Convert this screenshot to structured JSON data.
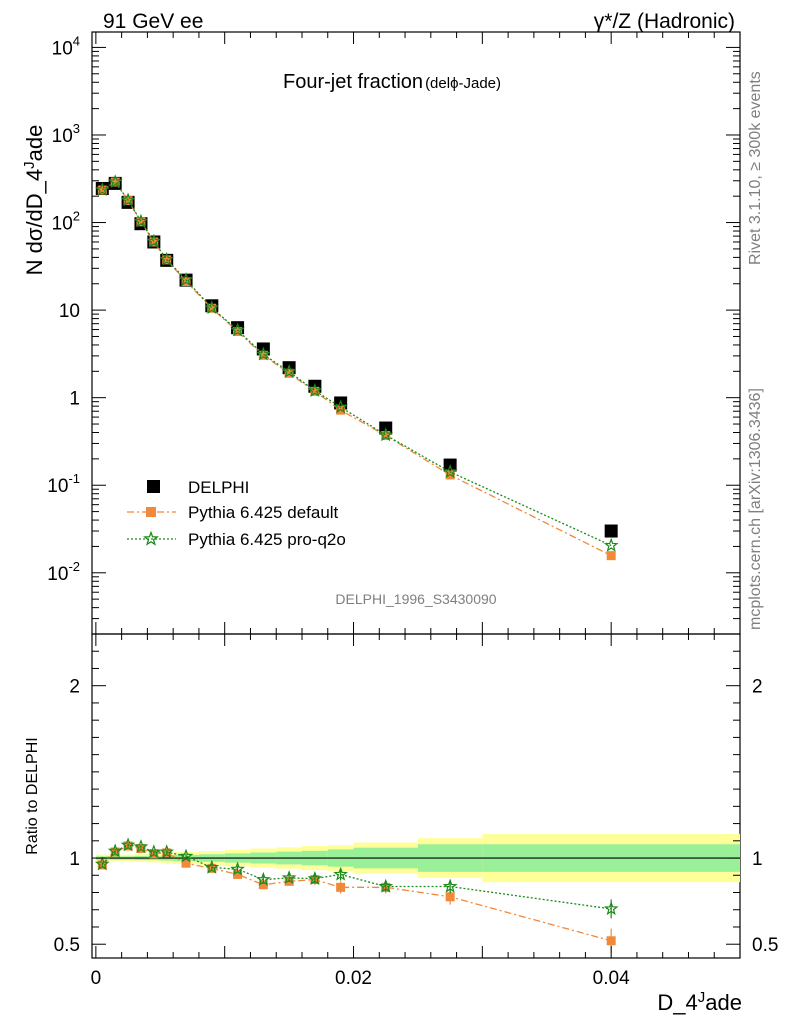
{
  "header": {
    "left": "91 GeV ee",
    "right": "γ*/Z (Hadronic)"
  },
  "side_labels": {
    "rivet": "Rivet 3.1.10, ≥ 300k events",
    "mcplots": "mcplots.cern.ch [arXiv:1306.3436]"
  },
  "chart_data": [
    {
      "type": "scatter",
      "panel": "main",
      "title": "Four-jet fraction",
      "title_suffix": "(delϕ-Jade)",
      "ylabel": "N dσ/dD_4^Jade",
      "yscale": "log",
      "ylim": [
        0.002,
        15000
      ],
      "y_ticks": [
        {
          "value": 0.01,
          "label": "10",
          "exp": "-2"
        },
        {
          "value": 0.1,
          "label": "10",
          "exp": "-1"
        },
        {
          "value": 1,
          "label": "1",
          "exp": ""
        },
        {
          "value": 10,
          "label": "10",
          "exp": ""
        },
        {
          "value": 100,
          "label": "10",
          "exp": "2"
        },
        {
          "value": 1000,
          "label": "10",
          "exp": "3"
        },
        {
          "value": 10000,
          "label": "10",
          "exp": "4"
        }
      ],
      "watermark": "DELPHI_1996_S3430090",
      "x": [
        0.0005,
        0.0015,
        0.0025,
        0.0035,
        0.0045,
        0.0055,
        0.007,
        0.009,
        0.011,
        0.013,
        0.015,
        0.017,
        0.019,
        0.0225,
        0.0275,
        0.04
      ],
      "series": [
        {
          "name": "DELPHI",
          "color": "#000000",
          "marker": "square",
          "values": [
            245,
            280,
            170,
            97,
            60,
            37,
            22,
            11.2,
            6.3,
            3.6,
            2.2,
            1.35,
            0.87,
            0.45,
            0.17,
            0.03
          ]
        },
        {
          "name": "Pythia 6.425 default",
          "color": "#f2883a",
          "marker": "square",
          "line": "dashdot",
          "values": [
            235,
            290,
            178,
            102,
            60,
            37.5,
            21.2,
            10.5,
            5.7,
            3.05,
            1.9,
            1.18,
            0.72,
            0.37,
            0.131,
            0.0157
          ]
        },
        {
          "name": "Pythia 6.425 pro-q2o",
          "color": "#1a8a1a",
          "marker": "star",
          "line": "dotted",
          "values": [
            237,
            291,
            180,
            103,
            61,
            37.8,
            22.2,
            10.6,
            5.9,
            3.13,
            1.98,
            1.2,
            0.78,
            0.375,
            0.142,
            0.0205
          ]
        }
      ]
    },
    {
      "type": "scatter",
      "panel": "ratio",
      "ylabel": "Ratio to DELPHI",
      "xlabel": "D_4^Jade",
      "xlim": [
        -0.0003,
        0.05
      ],
      "ylim": [
        0.42,
        2.3
      ],
      "x_ticks": [
        {
          "value": 0,
          "label": "0"
        },
        {
          "value": 0.02,
          "label": "0.02"
        },
        {
          "value": 0.04,
          "label": "0.04"
        }
      ],
      "y_ticks": [
        {
          "value": 0.5,
          "label": "0.5"
        },
        {
          "value": 1,
          "label": "1"
        },
        {
          "value": 2,
          "label": "2"
        }
      ],
      "bands": [
        {
          "x0": 0.0,
          "x1": 0.001,
          "green": 0.01,
          "yellow": 0.02
        },
        {
          "x0": 0.001,
          "x1": 0.002,
          "green": 0.01,
          "yellow": 0.02
        },
        {
          "x0": 0.002,
          "x1": 0.003,
          "green": 0.01,
          "yellow": 0.02
        },
        {
          "x0": 0.003,
          "x1": 0.004,
          "green": 0.012,
          "yellow": 0.022
        },
        {
          "x0": 0.004,
          "x1": 0.005,
          "green": 0.012,
          "yellow": 0.025
        },
        {
          "x0": 0.005,
          "x1": 0.006,
          "green": 0.015,
          "yellow": 0.028
        },
        {
          "x0": 0.006,
          "x1": 0.008,
          "green": 0.018,
          "yellow": 0.035
        },
        {
          "x0": 0.008,
          "x1": 0.01,
          "green": 0.022,
          "yellow": 0.04
        },
        {
          "x0": 0.01,
          "x1": 0.012,
          "green": 0.027,
          "yellow": 0.048
        },
        {
          "x0": 0.012,
          "x1": 0.014,
          "green": 0.032,
          "yellow": 0.055
        },
        {
          "x0": 0.014,
          "x1": 0.016,
          "green": 0.037,
          "yellow": 0.062
        },
        {
          "x0": 0.016,
          "x1": 0.018,
          "green": 0.042,
          "yellow": 0.07
        },
        {
          "x0": 0.018,
          "x1": 0.02,
          "green": 0.05,
          "yellow": 0.075
        },
        {
          "x0": 0.02,
          "x1": 0.025,
          "green": 0.06,
          "yellow": 0.09
        },
        {
          "x0": 0.025,
          "x1": 0.03,
          "green": 0.08,
          "yellow": 0.115
        },
        {
          "x0": 0.03,
          "x1": 0.05,
          "green": 0.08,
          "yellow": 0.14
        }
      ],
      "series": [
        {
          "name": "Pythia 6.425 default",
          "color": "#f2883a",
          "marker": "square",
          "values": [
            0.96,
            1.035,
            1.07,
            1.055,
            1.025,
            1.03,
            0.97,
            0.94,
            0.905,
            0.845,
            0.865,
            0.875,
            0.83,
            0.83,
            0.775,
            0.52
          ],
          "errors": [
            0.01,
            0.01,
            0.01,
            0.01,
            0.012,
            0.012,
            0.015,
            0.02,
            0.02,
            0.025,
            0.025,
            0.03,
            0.035,
            0.035,
            0.045,
            0.07
          ]
        },
        {
          "name": "Pythia 6.425 pro-q2o",
          "color": "#1a8a1a",
          "marker": "star",
          "values": [
            0.965,
            1.04,
            1.075,
            1.065,
            1.035,
            1.035,
            1.01,
            0.945,
            0.935,
            0.875,
            0.885,
            0.88,
            0.905,
            0.835,
            0.835,
            0.705
          ],
          "errors": [
            0.01,
            0.01,
            0.01,
            0.01,
            0.012,
            0.012,
            0.015,
            0.02,
            0.02,
            0.025,
            0.025,
            0.03,
            0.035,
            0.03,
            0.04,
            0.055
          ]
        }
      ]
    }
  ]
}
